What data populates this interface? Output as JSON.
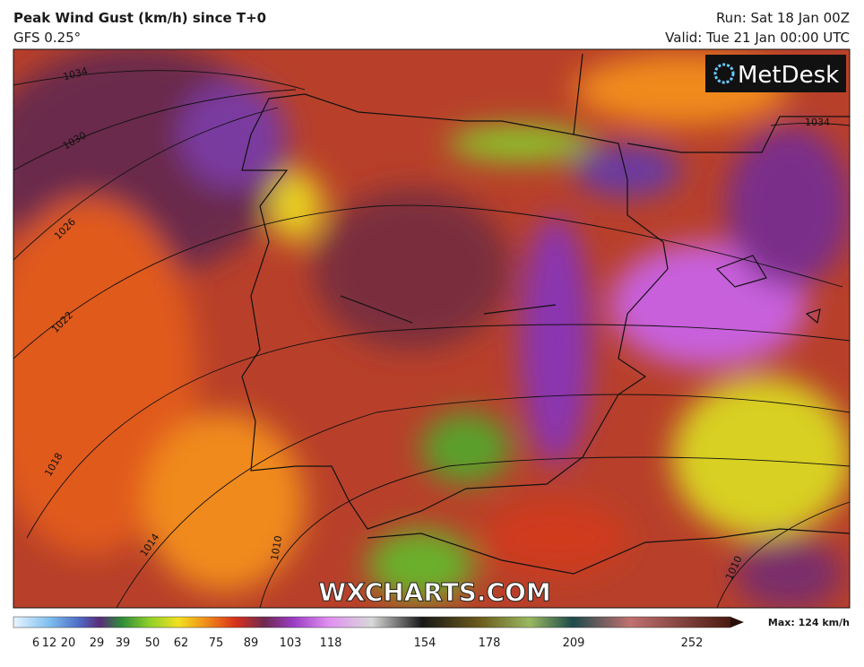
{
  "header": {
    "title": "Peak Wind Gust (km/h) since T+0",
    "subtitle": "GFS 0.25°",
    "run": "Run: Sat 18 Jan 00Z",
    "valid": "Valid: Tue 21 Jan 00:00 UTC"
  },
  "logo": "MetDesk",
  "watermark": "WXCHARTS.COM",
  "isobar_labels": [
    "1034",
    "1030",
    "1026",
    "1022",
    "1018",
    "1014",
    "1010",
    "1034",
    "1010"
  ],
  "legend": {
    "ticks": [
      6,
      12,
      20,
      29,
      39,
      50,
      62,
      75,
      89,
      103,
      118,
      154,
      178,
      209,
      252
    ],
    "max_label": "Max: 124 km/h"
  }
}
